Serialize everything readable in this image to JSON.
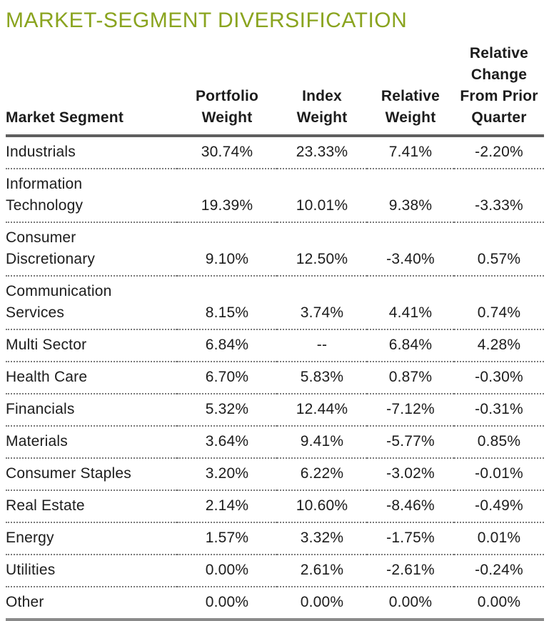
{
  "title": "MARKET-SEGMENT DIVERSIFICATION",
  "colors": {
    "title_green": "#8AA41F",
    "text": "#1C1C1C",
    "header_rule": "#5F5F5F",
    "bottom_rule": "#8A8A8A",
    "dotted_rule": "#7A7A7A"
  },
  "table": {
    "headers": [
      "Market Segment",
      "Portfolio\nWeight",
      "Index\nWeight",
      "Relative\nWeight",
      "Relative\nChange\nFrom Prior\nQuarter"
    ],
    "rows": [
      {
        "segment": "Industrials",
        "values": [
          "30.74%",
          "23.33%",
          "7.41%",
          "-2.20%"
        ]
      },
      {
        "segment": "Information\nTechnology",
        "values": [
          "19.39%",
          "10.01%",
          "9.38%",
          "-3.33%"
        ]
      },
      {
        "segment": "Consumer\nDiscretionary",
        "values": [
          "9.10%",
          "12.50%",
          "-3.40%",
          "0.57%"
        ]
      },
      {
        "segment": "Communication\nServices",
        "values": [
          "8.15%",
          "3.74%",
          "4.41%",
          "0.74%"
        ]
      },
      {
        "segment": "Multi Sector",
        "values": [
          "6.84%",
          "--",
          "6.84%",
          "4.28%"
        ]
      },
      {
        "segment": "Health Care",
        "values": [
          "6.70%",
          "5.83%",
          "0.87%",
          "-0.30%"
        ]
      },
      {
        "segment": "Financials",
        "values": [
          "5.32%",
          "12.44%",
          "-7.12%",
          "-0.31%"
        ]
      },
      {
        "segment": "Materials",
        "values": [
          "3.64%",
          "9.41%",
          "-5.77%",
          "0.85%"
        ]
      },
      {
        "segment": "Consumer Staples",
        "values": [
          "3.20%",
          "6.22%",
          "-3.02%",
          "-0.01%"
        ]
      },
      {
        "segment": "Real Estate",
        "values": [
          "2.14%",
          "10.60%",
          "-8.46%",
          "-0.49%"
        ]
      },
      {
        "segment": "Energy",
        "values": [
          "1.57%",
          "3.32%",
          "-1.75%",
          "0.01%"
        ]
      },
      {
        "segment": "Utilities",
        "values": [
          "0.00%",
          "2.61%",
          "-2.61%",
          "-0.24%"
        ]
      },
      {
        "segment": "Other",
        "values": [
          "0.00%",
          "0.00%",
          "0.00%",
          "0.00%"
        ]
      }
    ]
  }
}
